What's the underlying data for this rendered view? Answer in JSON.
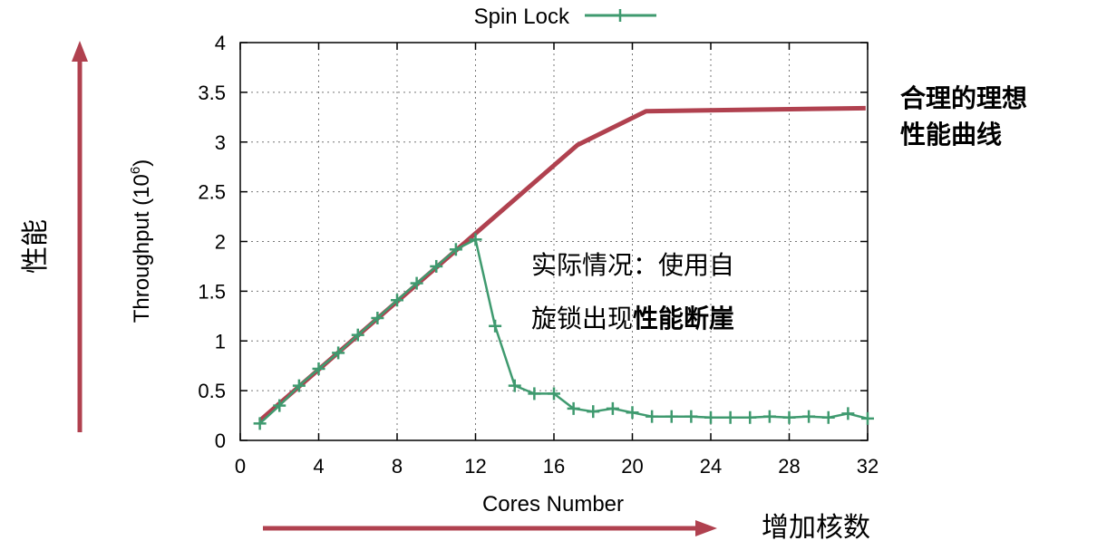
{
  "chart_data": {
    "type": "line",
    "xlabel": "Cores Number",
    "ylabel": "Throughput (10",
    "ylabel_sup": "6",
    "ylabel_suffix": ")",
    "xlim": [
      0,
      32
    ],
    "ylim": [
      0,
      4
    ],
    "x_ticks": [
      0,
      4,
      8,
      12,
      16,
      20,
      24,
      28,
      32
    ],
    "y_ticks": [
      0,
      0.5,
      1,
      1.5,
      2,
      2.5,
      3,
      3.5,
      4
    ],
    "y_tick_labels": [
      "0",
      "0.5",
      "1",
      "1.5",
      "2",
      "2.5",
      "3",
      "3.5",
      "4"
    ],
    "grid": true,
    "legend_position": "top",
    "series": [
      {
        "name": "Spin Lock",
        "color": "#3f9a6f",
        "marker": "plus",
        "x": [
          1,
          2,
          3,
          4,
          5,
          6,
          7,
          8,
          9,
          10,
          11,
          12,
          13,
          14,
          15,
          16,
          17,
          18,
          19,
          20,
          21,
          22,
          23,
          24,
          25,
          26,
          27,
          28,
          29,
          30,
          31,
          32
        ],
        "y": [
          0.17,
          0.35,
          0.55,
          0.72,
          0.88,
          1.06,
          1.23,
          1.41,
          1.58,
          1.75,
          1.92,
          2.02,
          1.15,
          0.55,
          0.47,
          0.47,
          0.32,
          0.29,
          0.32,
          0.28,
          0.24,
          0.24,
          0.24,
          0.23,
          0.23,
          0.23,
          0.24,
          0.23,
          0.24,
          0.23,
          0.27,
          0.22
        ]
      },
      {
        "name": "",
        "color": "#b0414f",
        "marker": "none",
        "x": [
          1,
          17.2,
          20.7,
          31.9
        ],
        "y": [
          0.2,
          2.97,
          3.31,
          3.34
        ]
      }
    ],
    "annotations": {
      "ideal_line1": "合理的理想",
      "ideal_line2": "性能曲线",
      "actual_line1": "实际情况：使用自",
      "actual_line2_normal": "旋锁出现",
      "actual_line2_bold": "性能断崖",
      "y_direction": "性能",
      "x_direction": "增加核数"
    },
    "arrow_color": "#b0414f"
  }
}
